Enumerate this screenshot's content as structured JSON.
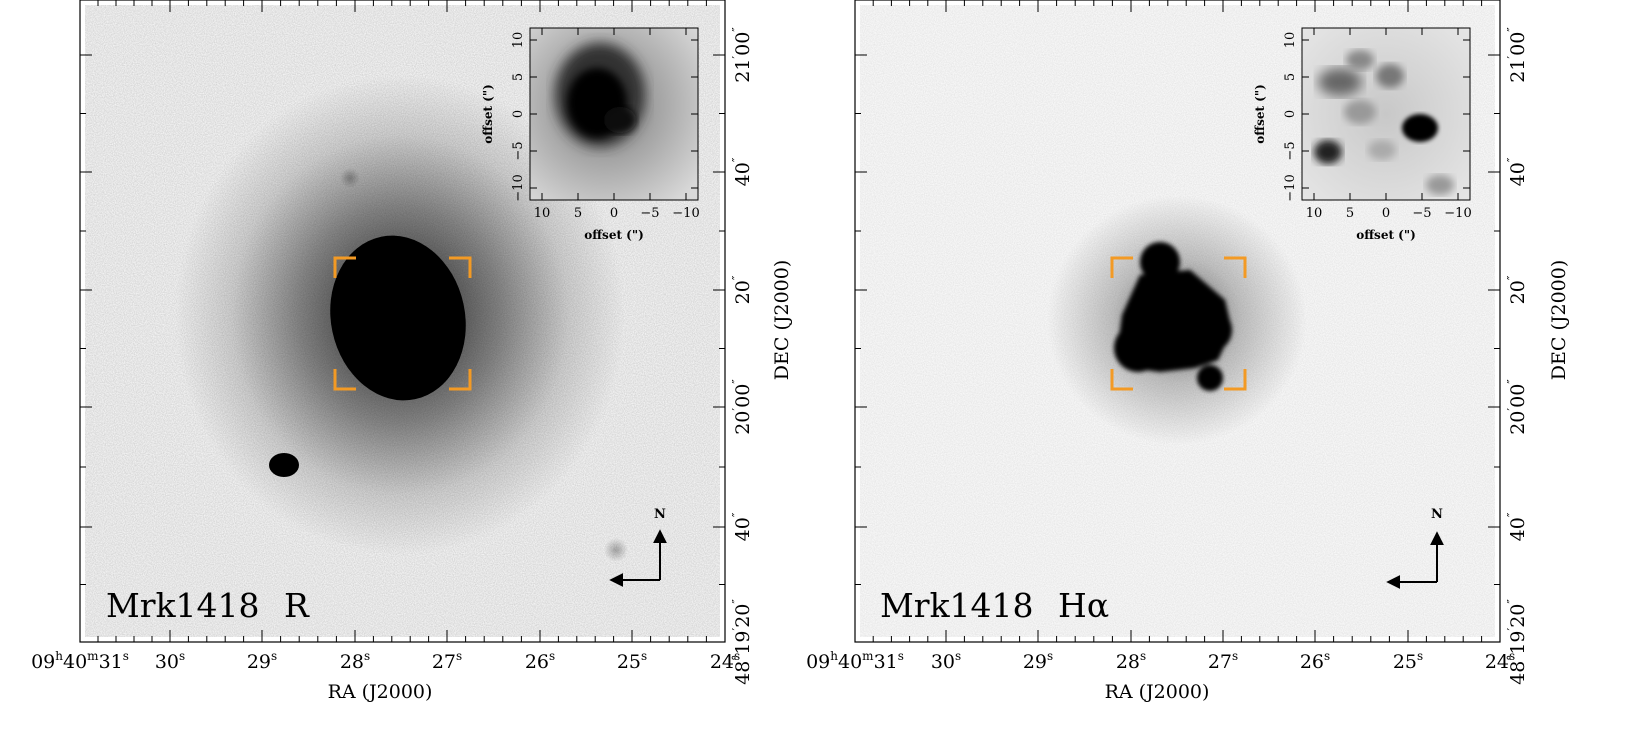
{
  "panels": [
    {
      "id": "r",
      "label": "Mrk1418 R",
      "label_prefix": "Mrk1418",
      "label_band": "R",
      "band_is_greek": false,
      "ra_ticks": [
        {
          "h": "09",
          "m": "40",
          "s": "31"
        },
        {
          "s": "30"
        },
        {
          "s": "29"
        },
        {
          "s": "28"
        },
        {
          "s": "27"
        },
        {
          "s": "26"
        },
        {
          "s": "25"
        },
        {
          "s": "24"
        }
      ],
      "dec_ticks": [
        {
          "d": "48",
          "m": "19",
          "s": "20"
        },
        {
          "s": "40"
        },
        {
          "m": "20",
          "s": "00"
        },
        {
          "s": "20"
        },
        {
          "s": "40"
        },
        {
          "m": "21",
          "s": "00"
        }
      ],
      "inset_x_ticks": [
        "10",
        "5",
        "0",
        "−5",
        "−10"
      ],
      "inset_y_ticks": [
        "10",
        "5",
        "0",
        "−5",
        "−10"
      ]
    },
    {
      "id": "ha",
      "label": "Mrk1418 Hα",
      "label_prefix": "Mrk1418",
      "label_band": "Hα",
      "band_is_greek": true,
      "ra_ticks": [
        {
          "h": "09",
          "m": "40",
          "s": "31"
        },
        {
          "s": "30"
        },
        {
          "s": "29"
        },
        {
          "s": "28"
        },
        {
          "s": "27"
        },
        {
          "s": "26"
        },
        {
          "s": "25"
        },
        {
          "s": "24"
        }
      ],
      "dec_ticks": [
        {
          "d": "48",
          "m": "19",
          "s": "20"
        },
        {
          "s": "40"
        },
        {
          "m": "20",
          "s": "00"
        },
        {
          "s": "20"
        },
        {
          "s": "40"
        },
        {
          "m": "21",
          "s": "00"
        }
      ],
      "inset_x_ticks": [
        "10",
        "5",
        "0",
        "−5",
        "−10"
      ],
      "inset_y_ticks": [
        "10",
        "5",
        "0",
        "−5",
        "−10"
      ]
    }
  ],
  "axes": {
    "ra_label": "RA (J2000)",
    "dec_label": "DEC (J2000)",
    "inset_x_label": "offset (\")",
    "inset_y_label": "offset (\")"
  },
  "compass": {
    "north": "N"
  },
  "colors": {
    "bracket": "#f39a24",
    "ink": "#000000"
  }
}
